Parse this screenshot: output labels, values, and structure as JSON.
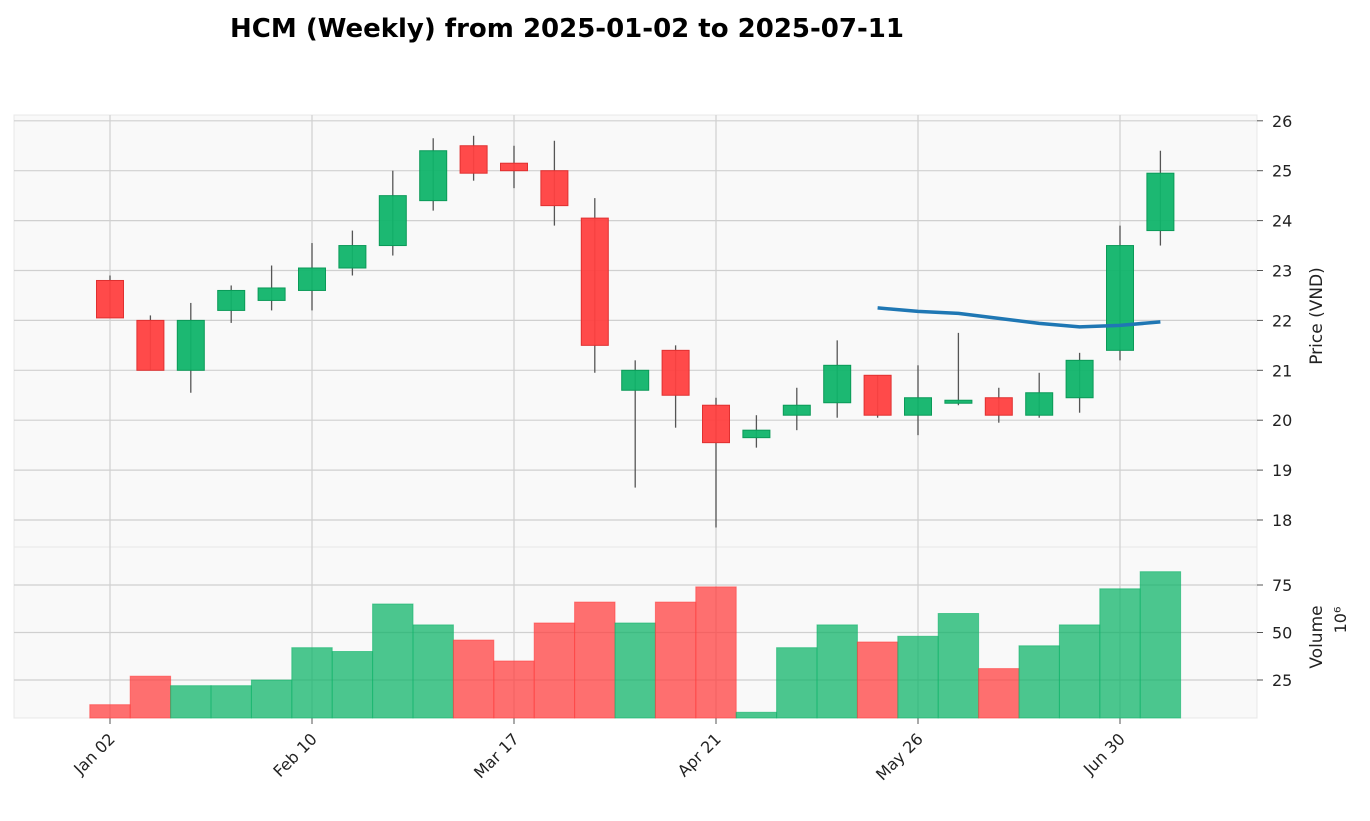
{
  "chart_data": {
    "type": "candlestick",
    "title": "HCM (Weekly) from 2025-01-02 to 2025-07-11",
    "price_axis": {
      "label": "Price (VND)",
      "ylim": [
        17.4,
        26.05
      ],
      "ticks": [
        18,
        19,
        20,
        21,
        22,
        23,
        24,
        25,
        26
      ]
    },
    "volume_axis": {
      "label": "Volume",
      "scale_label": "10⁶",
      "ylim": [
        0,
        82
      ],
      "ticks": [
        25,
        50,
        75
      ]
    },
    "x_tick_labels": [
      {
        "label": "Jan 02",
        "index": 0
      },
      {
        "label": "Feb 10",
        "index": 5
      },
      {
        "label": "Mar 17",
        "index": 10
      },
      {
        "label": "Apr 21",
        "index": 15
      },
      {
        "label": "May 26",
        "index": 20
      },
      {
        "label": "Jun 30",
        "index": 25
      }
    ],
    "colors": {
      "up": "#10b46a",
      "down": "#ff4040",
      "ma_line": "#1f77b4",
      "grid": "#d0d0d0",
      "plot_bg": "#f9f9f9"
    },
    "candles": [
      {
        "date": "2025-01-02",
        "open": 22.8,
        "high": 22.9,
        "low": 22.05,
        "close": 22.05,
        "volume": 12
      },
      {
        "date": "2025-01-06",
        "open": 22.0,
        "high": 22.1,
        "low": 21.0,
        "close": 21.0,
        "volume": 27
      },
      {
        "date": "2025-01-13",
        "open": 21.0,
        "high": 22.35,
        "low": 20.55,
        "close": 22.0,
        "volume": 22
      },
      {
        "date": "2025-01-20",
        "open": 22.2,
        "high": 22.7,
        "low": 21.95,
        "close": 22.6,
        "volume": 22
      },
      {
        "date": "2025-02-03",
        "open": 22.4,
        "high": 23.1,
        "low": 22.2,
        "close": 22.65,
        "volume": 25
      },
      {
        "date": "2025-02-10",
        "open": 22.6,
        "high": 23.55,
        "low": 22.2,
        "close": 23.05,
        "volume": 42
      },
      {
        "date": "2025-02-17",
        "open": 23.05,
        "high": 23.8,
        "low": 22.9,
        "close": 23.5,
        "volume": 40
      },
      {
        "date": "2025-02-24",
        "open": 23.5,
        "high": 25.0,
        "low": 23.3,
        "close": 24.5,
        "volume": 65
      },
      {
        "date": "2025-03-03",
        "open": 24.4,
        "high": 25.65,
        "low": 24.2,
        "close": 25.4,
        "volume": 54
      },
      {
        "date": "2025-03-10",
        "open": 25.5,
        "high": 25.7,
        "low": 24.8,
        "close": 24.95,
        "volume": 46
      },
      {
        "date": "2025-03-17",
        "open": 25.15,
        "high": 25.5,
        "low": 24.65,
        "close": 25.0,
        "volume": 35
      },
      {
        "date": "2025-03-24",
        "open": 25.0,
        "high": 25.6,
        "low": 23.9,
        "close": 24.3,
        "volume": 55
      },
      {
        "date": "2025-03-31",
        "open": 24.05,
        "high": 24.45,
        "low": 20.95,
        "close": 21.5,
        "volume": 66
      },
      {
        "date": "2025-04-07",
        "open": 20.6,
        "high": 21.2,
        "low": 18.65,
        "close": 21.0,
        "volume": 55
      },
      {
        "date": "2025-04-14",
        "open": 21.4,
        "high": 21.5,
        "low": 19.85,
        "close": 20.5,
        "volume": 66
      },
      {
        "date": "2025-04-21",
        "open": 20.3,
        "high": 20.45,
        "low": 17.85,
        "close": 19.55,
        "volume": 74
      },
      {
        "date": "2025-04-28",
        "open": 19.65,
        "high": 20.1,
        "low": 19.45,
        "close": 19.8,
        "volume": 8
      },
      {
        "date": "2025-05-05",
        "open": 20.1,
        "high": 20.65,
        "low": 19.8,
        "close": 20.3,
        "volume": 42
      },
      {
        "date": "2025-05-12",
        "open": 20.35,
        "high": 21.6,
        "low": 20.05,
        "close": 21.1,
        "volume": 54
      },
      {
        "date": "2025-05-19",
        "open": 20.9,
        "high": 20.9,
        "low": 20.05,
        "close": 20.1,
        "volume": 45
      },
      {
        "date": "2025-05-26",
        "open": 20.1,
        "high": 21.1,
        "low": 19.7,
        "close": 20.45,
        "volume": 48
      },
      {
        "date": "2025-06-02",
        "open": 20.35,
        "high": 21.75,
        "low": 20.3,
        "close": 20.4,
        "volume": 60
      },
      {
        "date": "2025-06-09",
        "open": 20.45,
        "high": 20.65,
        "low": 19.95,
        "close": 20.1,
        "volume": 31
      },
      {
        "date": "2025-06-16",
        "open": 20.1,
        "high": 20.95,
        "low": 20.05,
        "close": 20.55,
        "volume": 43
      },
      {
        "date": "2025-06-23",
        "open": 20.45,
        "high": 21.35,
        "low": 20.15,
        "close": 21.2,
        "volume": 54
      },
      {
        "date": "2025-06-30",
        "open": 21.4,
        "high": 23.9,
        "low": 21.2,
        "close": 23.5,
        "volume": 73
      },
      {
        "date": "2025-07-07",
        "open": 23.8,
        "high": 25.4,
        "low": 23.5,
        "close": 24.95,
        "volume": 82
      }
    ],
    "moving_average": [
      {
        "index": 19,
        "value": 22.25
      },
      {
        "index": 20,
        "value": 22.18
      },
      {
        "index": 21,
        "value": 22.14
      },
      {
        "index": 22,
        "value": 22.04
      },
      {
        "index": 23,
        "value": 21.94
      },
      {
        "index": 24,
        "value": 21.87
      },
      {
        "index": 25,
        "value": 21.9
      },
      {
        "index": 26,
        "value": 21.97
      }
    ]
  }
}
